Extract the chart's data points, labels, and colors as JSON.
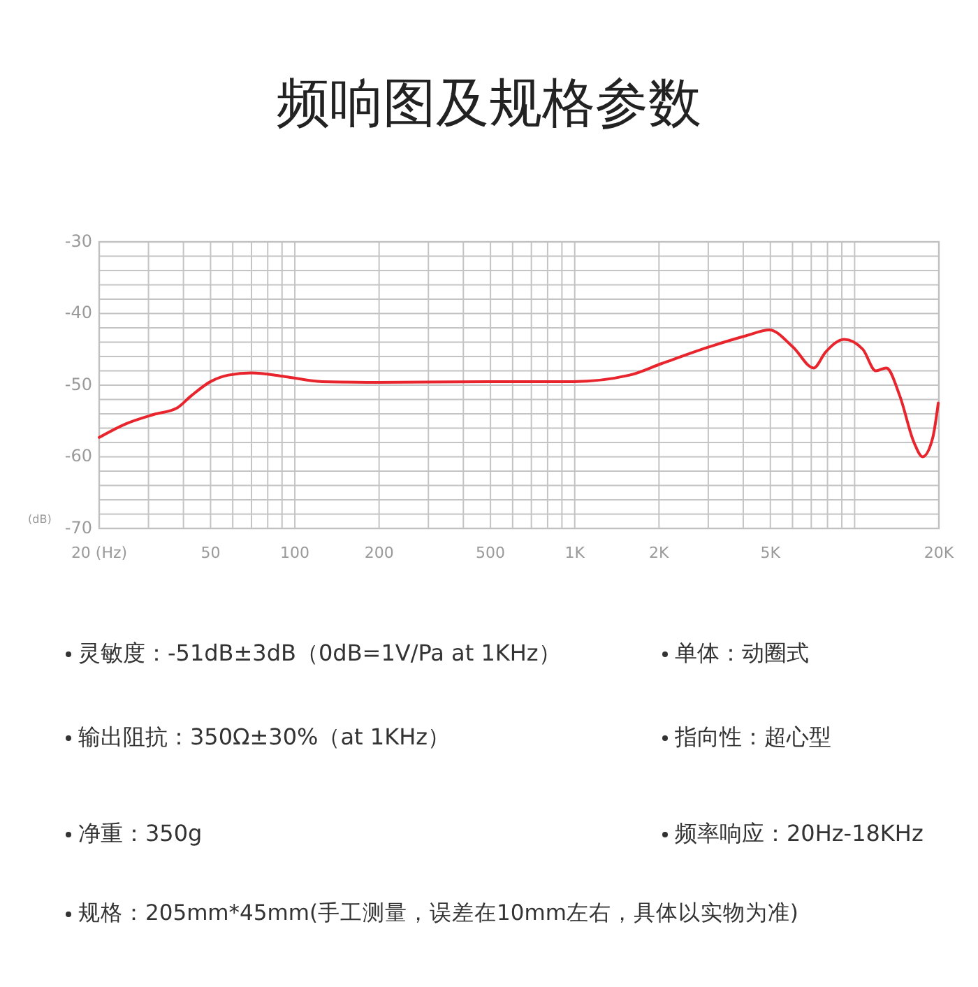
{
  "chart_data": {
    "type": "line",
    "title": "频响图及规格参数",
    "ylabel": "(dB)",
    "x": [
      20,
      24.9,
      31.3,
      37.9,
      42.6,
      50,
      57.9,
      70,
      92,
      125,
      200,
      496,
      990,
      1570,
      2040,
      3000,
      4100,
      4960,
      6030,
      7140,
      7870,
      9180,
      10700,
      11900,
      12970,
      14500,
      16300,
      17500,
      19000,
      19900
    ],
    "series": [
      {
        "color": "#e8242c",
        "values": [
          -57.3,
          -55.4,
          -54.1,
          -53.2,
          -51.5,
          -49.5,
          -48.6,
          -48.3,
          -48.8,
          -49.5,
          -49.6,
          -49.5,
          -49.5,
          -48.6,
          -47.0,
          -44.7,
          -43.1,
          -42.3,
          -44.7,
          -47.6,
          -45.4,
          -43.6,
          -45.0,
          -48.0,
          -47.6,
          -51.5,
          -58.0,
          -60.0,
          -57.4,
          -52.5
        ]
      }
    ],
    "log": "x",
    "xlim": [
      20,
      20000
    ],
    "ylim": [
      -70,
      -30
    ],
    "xticks": [
      {
        "value": 20,
        "label": "20 (Hz)"
      },
      {
        "value": 30,
        "label": null
      },
      {
        "value": 40,
        "label": null
      },
      50,
      {
        "value": 60,
        "label": null
      },
      {
        "value": 70,
        "label": null
      },
      {
        "value": 80,
        "label": null
      },
      {
        "value": 90,
        "label": null
      },
      100,
      200,
      {
        "value": 300,
        "label": null
      },
      {
        "value": 400,
        "label": null
      },
      500,
      {
        "value": 600,
        "label": null
      },
      {
        "value": 700,
        "label": null
      },
      {
        "value": 800,
        "label": null
      },
      {
        "value": 900,
        "label": null
      },
      {
        "value": 1000,
        "label": "1K"
      },
      {
        "value": 2000,
        "label": "2K"
      },
      {
        "value": 3000,
        "label": null
      },
      {
        "value": 4000,
        "label": null
      },
      {
        "value": 5000,
        "label": "5K"
      },
      {
        "value": 6000,
        "label": null
      },
      {
        "value": 7000,
        "label": null
      },
      {
        "value": 8000,
        "label": null
      },
      {
        "value": 9000,
        "label": null
      },
      {
        "value": 10000,
        "label": null
      },
      {
        "value": 20000,
        "label": "20K"
      }
    ],
    "yticks": [
      -70,
      {
        "value": -68,
        "label": null
      },
      {
        "value": -66,
        "label": null
      },
      {
        "value": -64,
        "label": null
      },
      {
        "value": -62,
        "label": null
      },
      -60,
      {
        "value": -58,
        "label": null
      },
      {
        "value": -56,
        "label": null
      },
      {
        "value": -54,
        "label": null
      },
      {
        "value": -52,
        "label": null
      },
      -50,
      {
        "value": -48,
        "label": null
      },
      {
        "value": -46,
        "label": null
      },
      {
        "value": -44,
        "label": null
      },
      {
        "value": -42,
        "label": null
      },
      -40,
      {
        "value": -38,
        "label": null
      },
      {
        "value": -36,
        "label": null
      },
      {
        "value": -34,
        "label": null
      },
      {
        "value": -32,
        "label": null
      },
      -30
    ],
    "grid": true,
    "line_style": "solid",
    "marker": "none",
    "annotations": [
      "灵敏度：-51dB±3dB（0dB=1V/Pa at 1KHz）",
      "单体：动圈式",
      "输出阻抗：350Ω±30%（at 1KHz）",
      "指向性：超心型",
      "净重：350g",
      "频率响应：20Hz-18KHz",
      "规格：205mm*45mm(手工测量，误差在10mm左右，具体以实物为准)"
    ]
  }
}
